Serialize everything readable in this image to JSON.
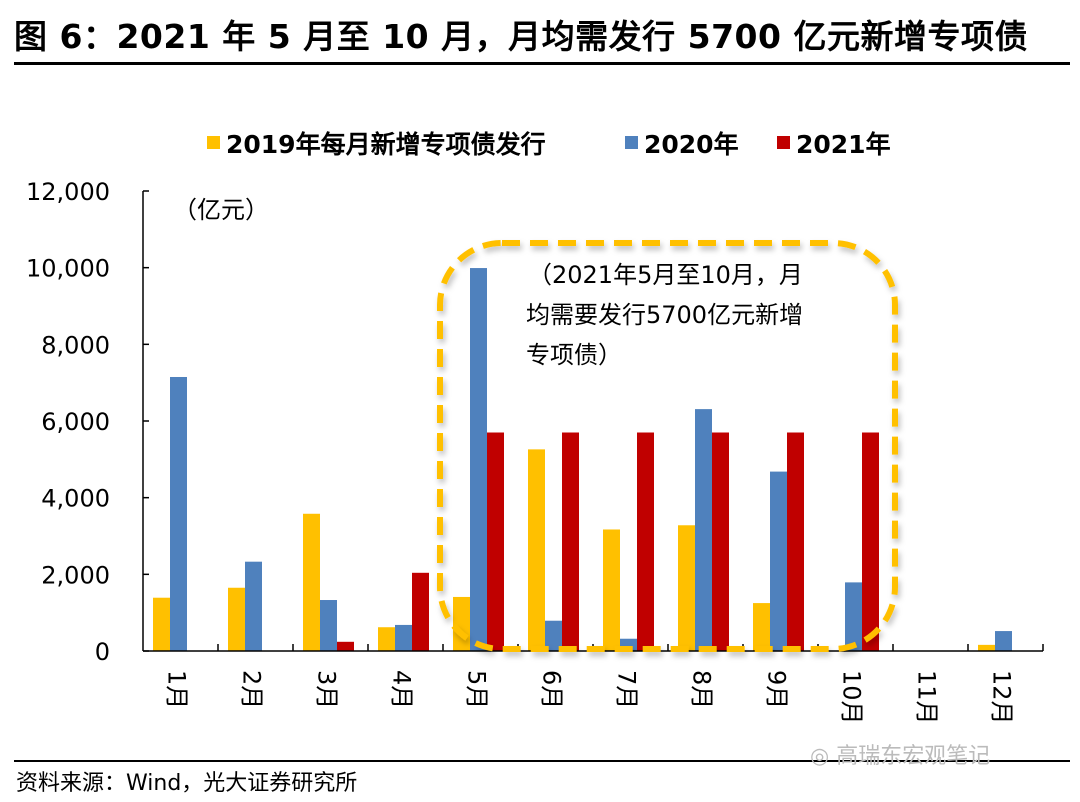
{
  "header": {
    "title": "图 6：2021 年 5 月至 10 月，月均需发行 5700 亿元新增专项债"
  },
  "footer": {
    "source": "资料来源：Wind，光大证券研究所",
    "watermark": "高瑞东宏观笔记",
    "watermark_icon": "wechat-icon"
  },
  "colors": {
    "s2019": "#FFC000",
    "s2020": "#4F81BD",
    "s2021": "#C00000",
    "highlight_box": "#FFC000"
  },
  "chart_data": {
    "type": "bar",
    "title": "",
    "xlabel": "",
    "ylabel": "（亿元）",
    "ylim": [
      0,
      12000
    ],
    "yticks": [
      0,
      2000,
      4000,
      6000,
      8000,
      10000,
      12000
    ],
    "ytick_labels": [
      "0",
      "2,000",
      "4,000",
      "6,000",
      "8,000",
      "10,000",
      "12,000"
    ],
    "grid": false,
    "legend_position": "top",
    "categories": [
      "1月",
      "2月",
      "3月",
      "4月",
      "5月",
      "6月",
      "7月",
      "8月",
      "9月",
      "10月",
      "11月",
      "12月"
    ],
    "series": [
      {
        "name": "2019年每月新增专项债发行",
        "color": "#FFC000",
        "values": [
          1390,
          1650,
          3580,
          620,
          1410,
          5260,
          3170,
          3280,
          1250,
          0,
          0,
          160
        ]
      },
      {
        "name": "2020年",
        "color": "#4F81BD",
        "values": [
          7148,
          2330,
          1330,
          680,
          9990,
          790,
          320,
          6310,
          4680,
          1790,
          0,
          520
        ]
      },
      {
        "name": "2021年",
        "color": "#C00000",
        "values": [
          0,
          0,
          240,
          2040,
          5700,
          5700,
          5700,
          5700,
          5700,
          5700,
          0,
          0
        ]
      }
    ],
    "annotations": [
      {
        "text_lines": [
          "（2021年5月至10月，月",
          "均需要发行5700亿元新增",
          "专项债）"
        ],
        "highlight_range": [
          "5月",
          "10月"
        ],
        "style": "dashed rounded box"
      }
    ]
  }
}
